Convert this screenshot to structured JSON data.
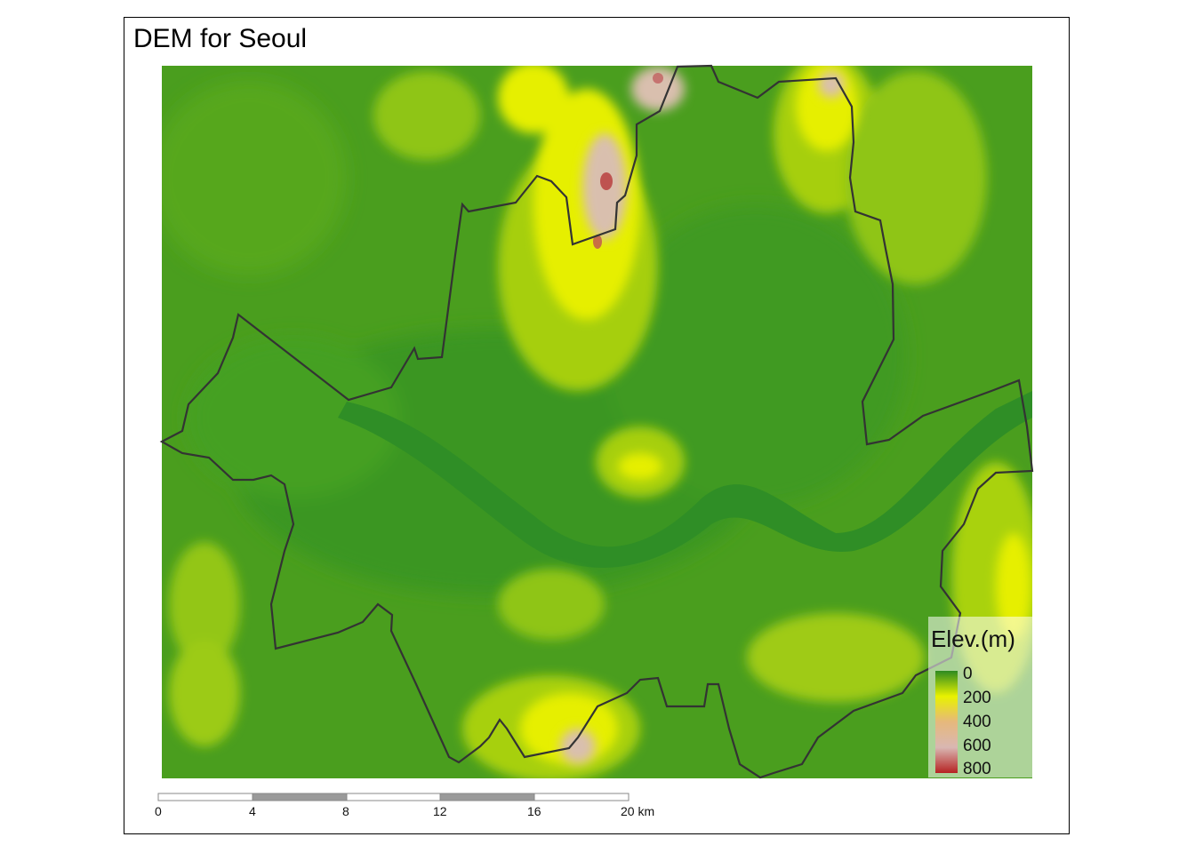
{
  "map": {
    "title": "DEM for Seoul",
    "region": "Seoul"
  },
  "legend": {
    "title": "Elev.(m)",
    "breaks": [
      "0",
      "200",
      "400",
      "600",
      "800"
    ],
    "colors": [
      "#2e8b21",
      "#e9f200",
      "#e6b87c",
      "#d9b7b2",
      "#b62323"
    ]
  },
  "scale_bar": {
    "labels": [
      "0",
      "4",
      "8",
      "12",
      "16",
      "20 km"
    ]
  },
  "colors": {
    "lowland": "#3a9a22",
    "river": "#2e8c25",
    "midland": "#7fbf1a",
    "highland": "#e8ef00",
    "peak": "#d7bfae",
    "summit": "#b84040",
    "boundary": "#333333"
  }
}
